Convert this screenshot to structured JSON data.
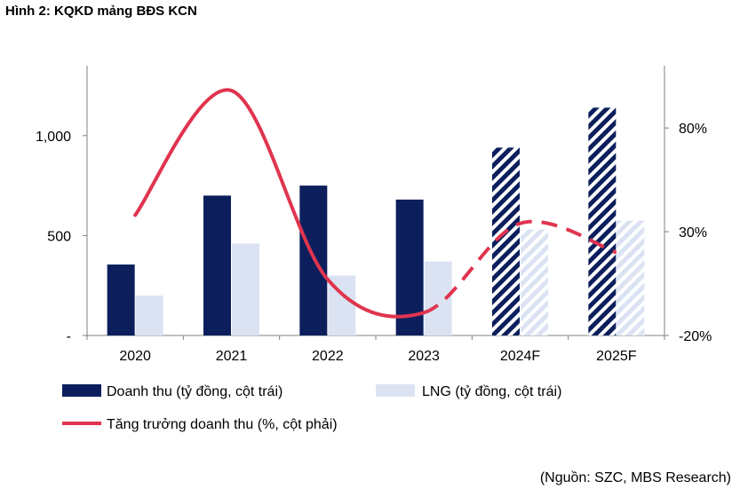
{
  "figure_title": "Hình 2: KQKD mảng BĐS KCN",
  "source_note": "(Nguồn: SZC, MBS Research)",
  "colors": {
    "revenue": "#0c1f5c",
    "profit": "#dbe3f3",
    "growth": "#e0344f"
  },
  "chart_data": {
    "type": "bar",
    "categories": [
      "2020",
      "2021",
      "2022",
      "2023",
      "2024F",
      "2025F"
    ],
    "forecast_flags": [
      false,
      false,
      false,
      false,
      true,
      true
    ],
    "series": [
      {
        "name": "Doanh thu (tỷ đồng, cột trái)",
        "type": "bar",
        "axis": "left",
        "values": [
          355,
          700,
          750,
          680,
          940,
          1140
        ]
      },
      {
        "name": "LNG (tỷ đồng, cột trái)",
        "type": "bar",
        "axis": "left",
        "values": [
          200,
          460,
          300,
          370,
          530,
          575
        ]
      },
      {
        "name": "Tăng trưởng doanh thu (%, cột phải)",
        "type": "line",
        "axis": "right",
        "x": [
          2020,
          2021,
          2022,
          2023,
          2024,
          2025
        ],
        "values": [
          38,
          98,
          7,
          -9,
          34,
          20
        ]
      }
    ],
    "left_axis": {
      "range": [
        0,
        1350
      ],
      "ticks": [
        0,
        500,
        1000
      ],
      "tick_labels": [
        "-",
        "500",
        "1,000"
      ]
    },
    "right_axis": {
      "range": [
        -20,
        110
      ],
      "ticks": [
        -20,
        30,
        80
      ],
      "tick_labels": [
        "-20%",
        "30%",
        "80%"
      ]
    },
    "grid": false,
    "legend_position": "bottom",
    "notes": "Forecast years (2024F, 2025F) shown with hatched bars and dashed line"
  }
}
